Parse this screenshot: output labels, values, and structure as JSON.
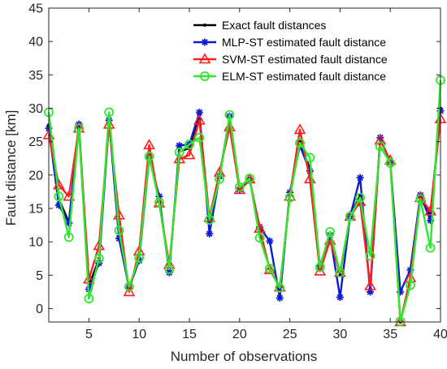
{
  "chart_data": {
    "type": "line",
    "xlabel": "Number of observations",
    "ylabel": "Fault distance [km]",
    "xlim": [
      1,
      40
    ],
    "ylim": [
      -2,
      45
    ],
    "xticks": [
      5,
      10,
      15,
      20,
      25,
      30,
      35,
      40
    ],
    "yticks": [
      0,
      5,
      10,
      15,
      20,
      25,
      30,
      35,
      40,
      45
    ],
    "grid": false,
    "legend_position": "top-right",
    "x": [
      1,
      2,
      3,
      4,
      5,
      6,
      7,
      8,
      9,
      10,
      11,
      12,
      13,
      14,
      15,
      16,
      17,
      18,
      19,
      20,
      21,
      22,
      23,
      24,
      25,
      26,
      27,
      28,
      29,
      30,
      31,
      32,
      33,
      34,
      35,
      36,
      37,
      38,
      39,
      40
    ],
    "series": [
      {
        "name": "Exact fault distances",
        "color": "#000000",
        "marker": "dot",
        "values": [
          27.5,
          16.5,
          13,
          27,
          3.5,
          7.5,
          28.5,
          11,
          3,
          7.5,
          23,
          16,
          6,
          23.5,
          24,
          29,
          13,
          20,
          28.5,
          18,
          19.5,
          11.5,
          6,
          3,
          17,
          25,
          21,
          6,
          11,
          5,
          14,
          17,
          3,
          25.5,
          22,
          -2,
          4,
          16.5,
          14,
          30
        ]
      },
      {
        "name": "MLP-ST estimated fault distance",
        "color": "#0b1bd6",
        "marker": "asterisk",
        "values": [
          27,
          15.5,
          12.8,
          27.6,
          2.9,
          6.8,
          28.2,
          10.5,
          3.1,
          7.2,
          22.6,
          16.8,
          5.4,
          24.4,
          24.6,
          29.4,
          11.2,
          19.8,
          28.8,
          17.8,
          19.2,
          12.2,
          10.1,
          1.6,
          17.4,
          24.4,
          20.6,
          6.4,
          11,
          1.7,
          13.8,
          19.6,
          2.5,
          25.6,
          21.9,
          2.5,
          5.8,
          17,
          13.2,
          29.6
        ]
      },
      {
        "name": "SVM-ST estimated fault distance",
        "color": "#ff1f1f",
        "marker": "triangle",
        "values": [
          26,
          18.5,
          16.8,
          27,
          4.4,
          9.4,
          27.6,
          14,
          2.5,
          8.6,
          24.5,
          15.8,
          6.6,
          22.4,
          23,
          28.2,
          13.6,
          20.4,
          27.2,
          17.8,
          19.4,
          12,
          5.8,
          3.2,
          16.8,
          26.8,
          19.4,
          5.6,
          10.2,
          5.4,
          13.8,
          16,
          3.4,
          25.2,
          22.2,
          -2,
          4.6,
          16.6,
          14.6,
          28.4
        ]
      },
      {
        "name": "ELM-ST estimated fault distance",
        "color": "#2ee82e",
        "marker": "circle",
        "values": [
          29.4,
          16.8,
          10.7,
          27,
          1.5,
          7.5,
          29.4,
          11.7,
          3.3,
          7.6,
          22.8,
          15.9,
          5.9,
          23.4,
          24.6,
          25.6,
          13.3,
          19.4,
          29,
          18.2,
          19.5,
          10.6,
          6,
          3.1,
          16.6,
          24.8,
          22.6,
          6.2,
          11.5,
          5.4,
          13.8,
          16.6,
          7.9,
          24.3,
          21.8,
          -1.9,
          3.5,
          16.4,
          9.1,
          34.2
        ]
      }
    ]
  }
}
